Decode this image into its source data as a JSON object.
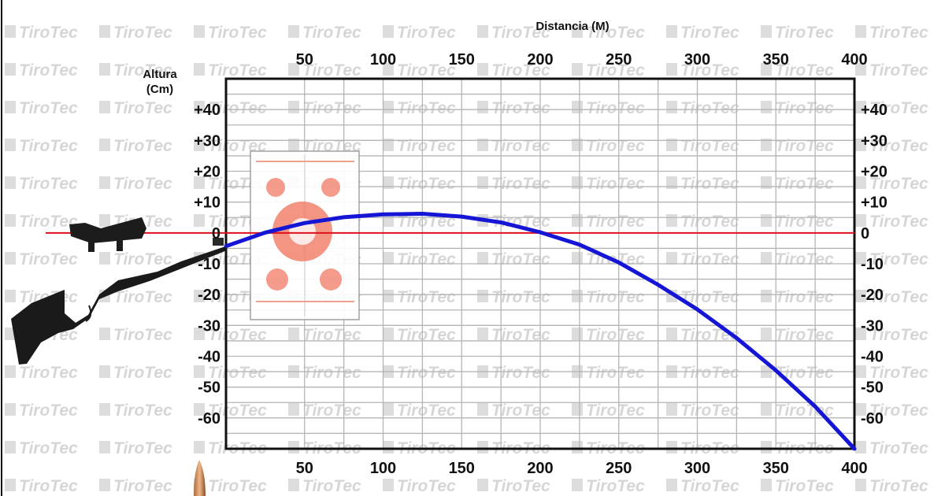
{
  "watermark": {
    "text": "TiroTec"
  },
  "chart_data": {
    "type": "line",
    "title": "",
    "xlabel": "Distancia (M)",
    "ylabel": [
      "Altura",
      "(Cm)"
    ],
    "xlim": [
      0,
      400
    ],
    "ylim": [
      -70,
      50
    ],
    "x_ticks": [
      50,
      100,
      150,
      200,
      250,
      300,
      350,
      400
    ],
    "x_tick_labels": [
      "50",
      "100",
      "150",
      "200",
      "250",
      "300",
      "350",
      "400"
    ],
    "y_ticks": [
      40,
      30,
      20,
      10,
      0,
      -10,
      -20,
      -30,
      -40,
      -50,
      -60
    ],
    "y_tick_labels": [
      "+40",
      "+30",
      "+20",
      "+10",
      "0",
      "-10",
      "-20",
      "-30",
      "-40",
      "-50",
      "-60"
    ],
    "grid": true,
    "series": [
      {
        "color": "#1515d6",
        "x": [
          0,
          25,
          50,
          75,
          100,
          125,
          150,
          175,
          200,
          225,
          250,
          275,
          300,
          325,
          350,
          375,
          400
        ],
        "y": [
          -4.3,
          0.1,
          3.2,
          5.1,
          6.0,
          6.2,
          5.3,
          3.4,
          0.2,
          -3.8,
          -9.6,
          -16.8,
          -24.8,
          -34.1,
          -44.6,
          -56.3,
          -70.0
        ]
      }
    ],
    "zero_line": {
      "y": 0,
      "color": "#e0101a"
    },
    "grid_color": "#b5b5b5",
    "frame_color": "#111111"
  }
}
